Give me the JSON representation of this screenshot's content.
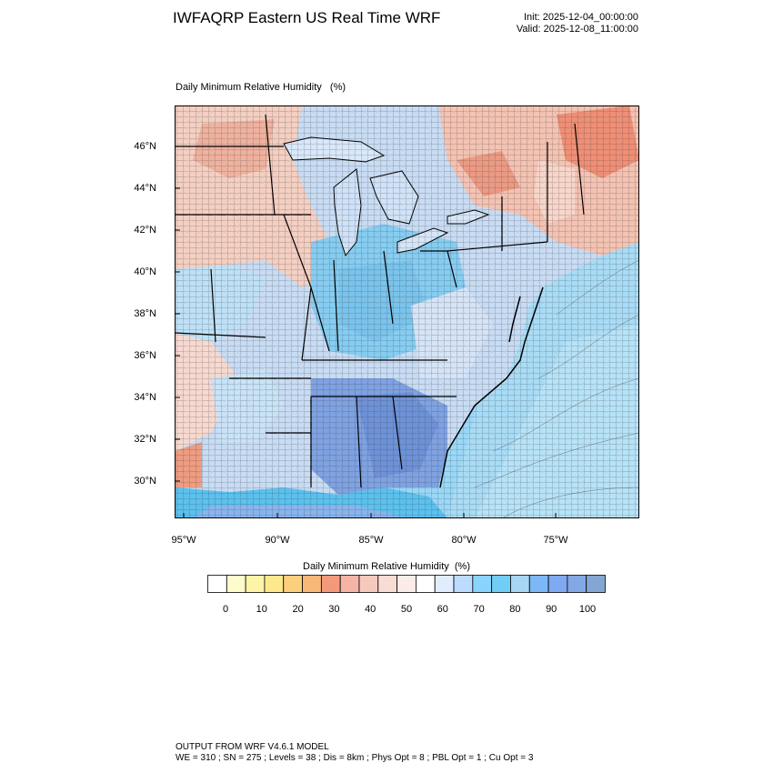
{
  "header": {
    "title": "IWFAQRP Eastern US Real Time WRF",
    "init": "Init: 2025-12-04_00:00:00",
    "valid": "Valid: 2025-12-08_11:00:00"
  },
  "map": {
    "title": "Daily Minimum Relative Humidity   (%)",
    "lat_labels": [
      "46°N",
      "44°N",
      "42°N",
      "40°N",
      "38°N",
      "36°N",
      "34°N",
      "32°N",
      "30°N"
    ],
    "lon_labels": [
      "95°W",
      "90°W",
      "85°W",
      "80°W",
      "75°W"
    ]
  },
  "legend": {
    "title": "Daily Minimum Relative Humidity  (%)",
    "labels": [
      "0",
      "10",
      "20",
      "30",
      "40",
      "50",
      "60",
      "70",
      "80",
      "90",
      "100"
    ],
    "colors": [
      "#ffffff",
      "#fffccc",
      "#fff3a8",
      "#fde88c",
      "#fbcf7c",
      "#f8b878",
      "#f39a7d",
      "#f4b5a6",
      "#f7c9bd",
      "#f9dcd3",
      "#fbece7",
      "#ffffff",
      "#e2ecff",
      "#bcdcff",
      "#88d4ff",
      "#72cdf6",
      "#a7d6f4",
      "#7cb7f7",
      "#7fa9f0",
      "#84a7e6",
      "#84a6d2"
    ]
  },
  "footer": {
    "line1": "OUTPUT FROM WRF V4.6.1 MODEL",
    "line2": "WE = 310 ; SN = 275 ; Levels = 38 ; Dis = 8km ; Phys Opt = 8 ; PBL Opt = 1 ; Cu Opt = 3"
  }
}
